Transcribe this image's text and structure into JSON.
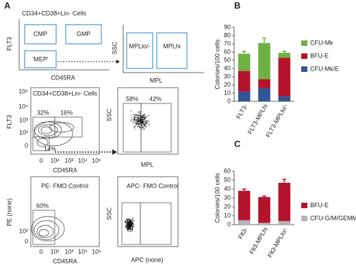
{
  "panel_labels": [
    "A",
    "B",
    "C"
  ],
  "panel_a": {
    "schematic": {
      "title": "CD34+CD38+Lin- Cells",
      "y_label": "FLT3",
      "x_label": "CD45RA",
      "gates": [
        "CMP",
        "GMP",
        "'MEP'"
      ]
    },
    "mpl_schematic": {
      "y_label": "SSC",
      "x_label": "MPL",
      "gates": [
        "MPLlo/-",
        "MPLhi"
      ]
    },
    "plots": [
      {
        "title": "CD34+CD38+Lin- Cells",
        "y_label": "FLT3",
        "x_label": "CD45RA",
        "yticks": [
          "10⁵",
          "10⁴",
          "10³",
          "10²",
          "0"
        ],
        "xticks": [
          "0",
          "10²",
          "10³",
          "10⁴",
          "10⁵"
        ],
        "gate_labels": [
          "32%",
          "16%",
          "14%"
        ]
      },
      {
        "y_label": "SSC",
        "x_label": "MPL",
        "gate_labels": [
          "58%",
          "42%"
        ]
      },
      {
        "title": "PE- FMO Control",
        "y_label": "PE (none)",
        "x_label": "CD45RA",
        "yticks": [
          "10²",
          "0"
        ],
        "xticks": [
          "0",
          "10²",
          "10³",
          "10⁴",
          "10⁵"
        ],
        "gate_labels": [
          "60%"
        ]
      },
      {
        "title": "APC- FMO Control",
        "y_label": "SSC",
        "x_label": "APC (none)"
      }
    ]
  },
  "chart_data": [
    {
      "type": "stacked_bar",
      "y_label": "Colonies/100 cells",
      "categories": [
        "FLT3-",
        "FLT3-MPLhi",
        "FLT3-MPLlo/-"
      ],
      "ylim": [
        0,
        90
      ],
      "yticks": [
        0,
        10,
        20,
        30,
        40,
        50,
        60,
        70,
        80,
        90
      ],
      "series": [
        {
          "name": "CFU-Mk/E",
          "color": "#2f5597",
          "values": [
            12,
            16,
            6
          ],
          "errors": [
            3,
            2,
            1
          ]
        },
        {
          "name": "BFU-E",
          "color": "#b3142c",
          "values": [
            25,
            11,
            47
          ],
          "errors": [
            2,
            4,
            1
          ]
        },
        {
          "name": "CFU-Mk",
          "color": "#6fb045",
          "values": [
            21,
            44,
            6
          ],
          "errors": [
            3,
            6,
            2
          ]
        }
      ]
    },
    {
      "type": "stacked_bar",
      "y_label": "Colonies/100 cells",
      "categories": [
        "Flt3-",
        "Flt3-MPLhi",
        "Flt3-MPLlo/-"
      ],
      "ylim": [
        0,
        60
      ],
      "yticks": [
        0,
        10,
        20,
        30,
        40,
        50,
        60
      ],
      "series": [
        {
          "name": "CFU-G/M/GEMM",
          "color": "#b4b4bc",
          "values": [
            5,
            2,
            4
          ],
          "errors": [
            1,
            0.5,
            2
          ]
        },
        {
          "name": "BFU-E",
          "color": "#b3142c",
          "values": [
            33,
            29,
            43
          ],
          "errors": [
            2,
            1,
            4
          ]
        }
      ]
    }
  ]
}
